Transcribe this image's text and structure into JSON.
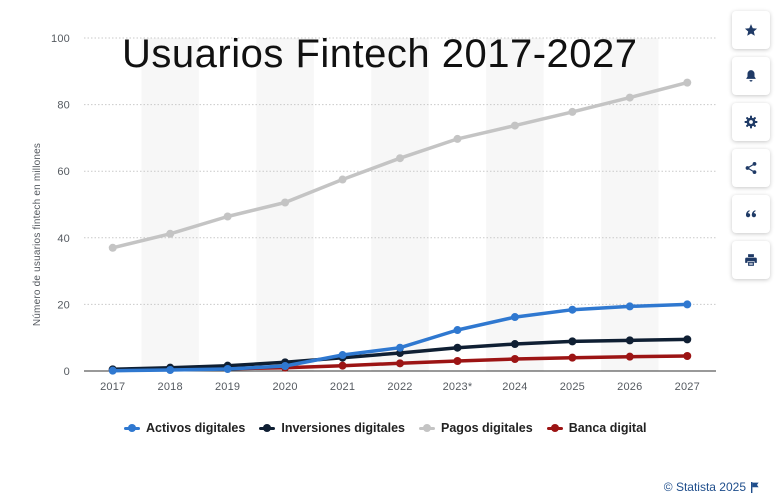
{
  "chart_data": {
    "type": "line",
    "title": "Usuarios Fintech 2017-2027",
    "ylabel": "Número de usuarios fintech en millones",
    "xlabel": "",
    "categories": [
      "2017",
      "2018",
      "2019",
      "2020",
      "2021",
      "2022",
      "2023*",
      "2024",
      "2025",
      "2026",
      "2027"
    ],
    "ylim": [
      0,
      100
    ],
    "yticks": [
      0,
      20,
      40,
      60,
      80,
      100
    ],
    "grid": true,
    "legend_position": "bottom",
    "series": [
      {
        "name": "Activos digitales",
        "color": "#2f78d0",
        "values": [
          0.1,
          0.3,
          0.6,
          1.5,
          4.8,
          7.0,
          12.3,
          16.2,
          18.4,
          19.4,
          20.0
        ]
      },
      {
        "name": "Inversiones digitales",
        "color": "#0f1f33",
        "values": [
          0.5,
          1.0,
          1.6,
          2.6,
          4.0,
          5.4,
          7.0,
          8.1,
          8.9,
          9.2,
          9.5
        ]
      },
      {
        "name": "Pagos digitales",
        "color": "#c4c4c4",
        "values": [
          37.0,
          41.2,
          46.4,
          50.6,
          57.5,
          63.9,
          69.7,
          73.7,
          77.8,
          82.1,
          86.6
        ]
      },
      {
        "name": "Banca digital",
        "color": "#9c1414",
        "values": [
          0.3,
          0.5,
          0.7,
          1.0,
          1.6,
          2.3,
          3.0,
          3.6,
          4.0,
          4.3,
          4.5
        ]
      }
    ]
  },
  "toolbar": {
    "buttons": [
      {
        "icon": "star-icon"
      },
      {
        "icon": "bell-icon"
      },
      {
        "icon": "gear-icon"
      },
      {
        "icon": "share-icon"
      },
      {
        "icon": "quote-icon"
      },
      {
        "icon": "print-icon"
      }
    ]
  },
  "credit": {
    "text": "© Statista 2025",
    "icon": "flag-icon"
  }
}
